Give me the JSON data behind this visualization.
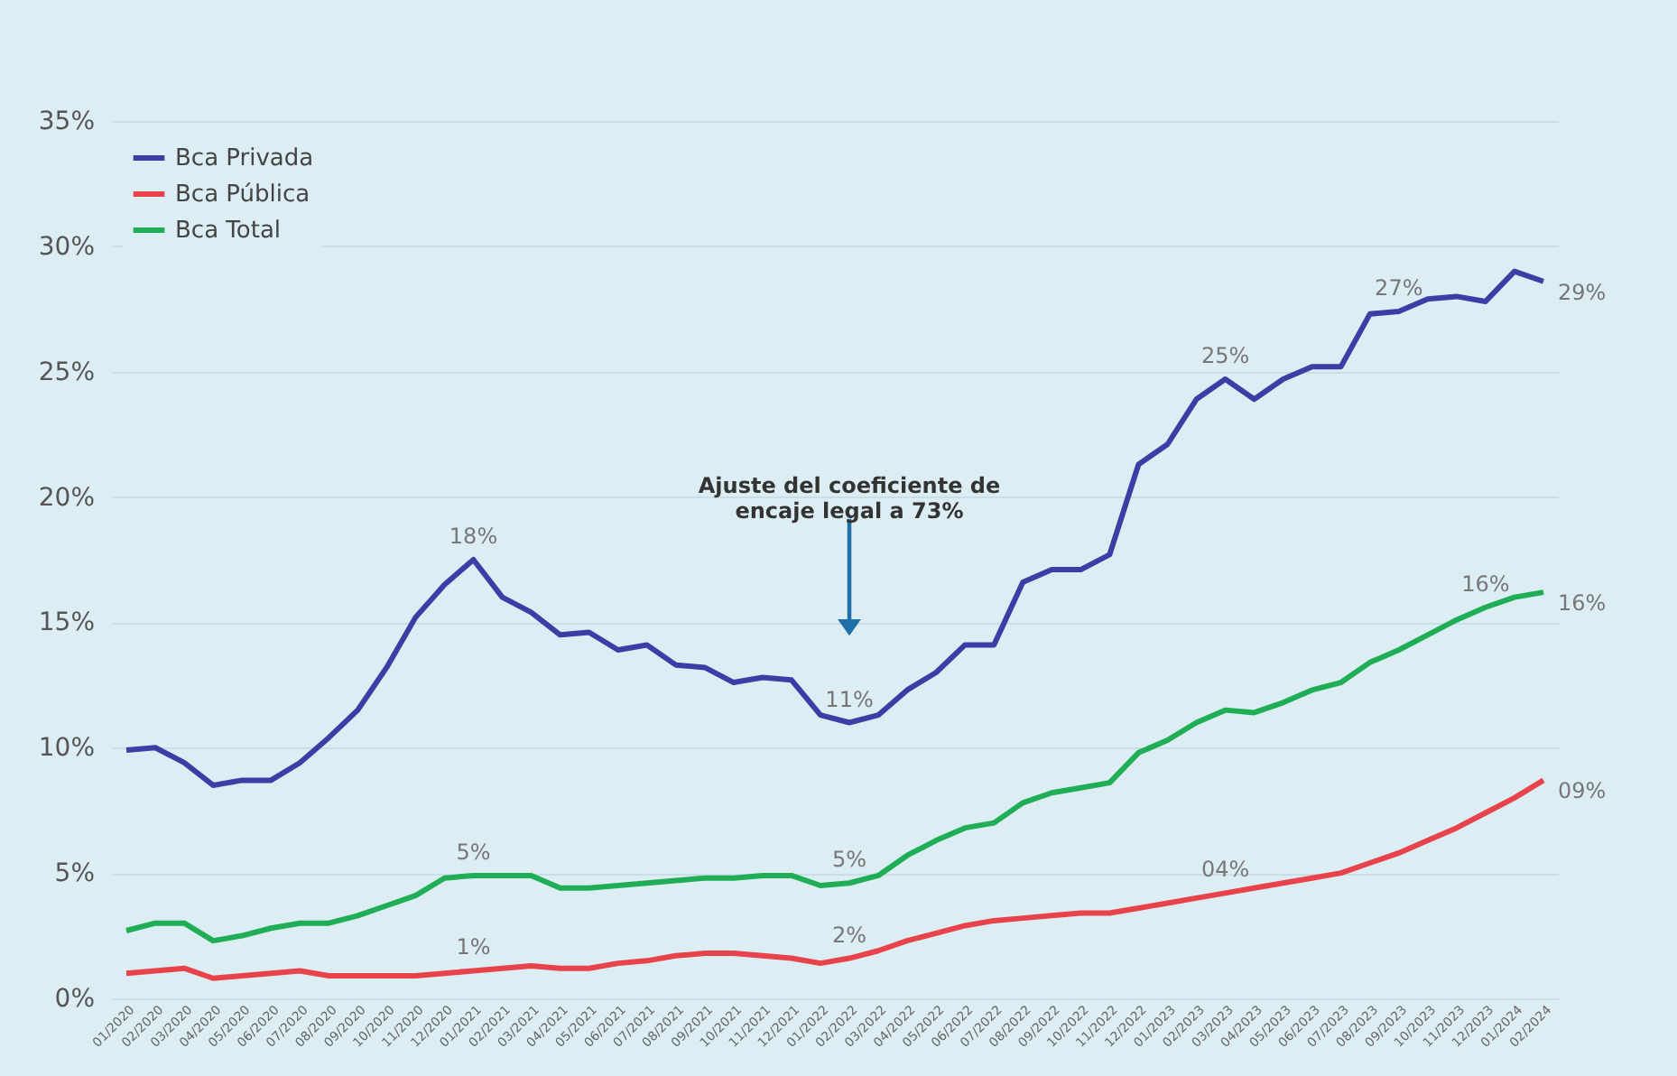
{
  "chart_data": {
    "type": "line",
    "categories": [
      "01/2020",
      "02/2020",
      "03/2020",
      "04/2020",
      "05/2020",
      "06/2020",
      "07/2020",
      "08/2020",
      "09/2020",
      "10/2020",
      "11/2020",
      "12/2020",
      "01/2021",
      "02/2021",
      "03/2021",
      "04/2021",
      "05/2021",
      "06/2021",
      "07/2021",
      "08/2021",
      "09/2021",
      "10/2021",
      "11/2021",
      "12/2021",
      "01/2022",
      "02/2022",
      "03/2022",
      "04/2022",
      "05/2022",
      "06/2022",
      "07/2022",
      "08/2022",
      "09/2022",
      "10/2022",
      "11/2022",
      "12/2022",
      "01/2023",
      "02/2023",
      "03/2023",
      "04/2023",
      "05/2023",
      "06/2023",
      "07/2023",
      "08/2023",
      "09/2023",
      "10/2023",
      "11/2023",
      "12/2023",
      "01/2024",
      "02/2024"
    ],
    "series": [
      {
        "name": "Bca Privada",
        "color": "#3a3fa6",
        "values": [
          9.9,
          10.0,
          9.4,
          8.5,
          8.7,
          8.7,
          9.4,
          10.4,
          11.5,
          13.2,
          15.2,
          16.5,
          17.5,
          16.0,
          15.4,
          14.5,
          14.6,
          13.9,
          14.1,
          13.3,
          13.2,
          12.6,
          12.8,
          12.7,
          11.3,
          11.0,
          11.3,
          12.3,
          13.0,
          14.1,
          14.1,
          16.6,
          17.1,
          17.1,
          17.7,
          21.3,
          22.1,
          23.9,
          24.7,
          23.9,
          24.7,
          25.2,
          25.2,
          27.3,
          27.4,
          27.9,
          28.0,
          27.8,
          29.0,
          28.6
        ],
        "value_labels": [
          null,
          null,
          null,
          null,
          null,
          null,
          null,
          null,
          null,
          null,
          null,
          null,
          "18%",
          null,
          null,
          null,
          null,
          null,
          null,
          null,
          null,
          null,
          null,
          null,
          null,
          "11%",
          null,
          null,
          null,
          null,
          null,
          null,
          null,
          null,
          null,
          null,
          null,
          null,
          "25%",
          null,
          null,
          null,
          null,
          null,
          "27%",
          null,
          null,
          null,
          null,
          "29%"
        ]
      },
      {
        "name": "Bca Pública",
        "color": "#e8434a",
        "values": [
          1.0,
          1.1,
          1.2,
          0.8,
          0.9,
          1.0,
          1.1,
          0.9,
          0.9,
          0.9,
          0.9,
          1.0,
          1.1,
          1.2,
          1.3,
          1.2,
          1.2,
          1.4,
          1.5,
          1.7,
          1.8,
          1.8,
          1.7,
          1.6,
          1.4,
          1.6,
          1.9,
          2.3,
          2.6,
          2.9,
          3.1,
          3.2,
          3.3,
          3.4,
          3.4,
          3.6,
          3.8,
          4.0,
          4.2,
          4.4,
          4.6,
          4.8,
          5.0,
          5.4,
          5.8,
          6.3,
          6.8,
          7.4,
          8.0,
          8.7
        ],
        "value_labels": [
          null,
          null,
          null,
          null,
          null,
          null,
          null,
          null,
          null,
          null,
          null,
          null,
          "1%",
          null,
          null,
          null,
          null,
          null,
          null,
          null,
          null,
          null,
          null,
          null,
          null,
          "2%",
          null,
          null,
          null,
          null,
          null,
          null,
          null,
          null,
          null,
          null,
          null,
          null,
          "04%",
          null,
          null,
          null,
          null,
          null,
          null,
          null,
          null,
          null,
          null,
          "09%"
        ]
      },
      {
        "name": "Bca Total",
        "color": "#1fae55",
        "values": [
          2.7,
          3.0,
          3.0,
          2.3,
          2.5,
          2.8,
          3.0,
          3.0,
          3.3,
          3.7,
          4.1,
          4.8,
          4.9,
          4.9,
          4.9,
          4.4,
          4.4,
          4.5,
          4.6,
          4.7,
          4.8,
          4.8,
          4.9,
          4.9,
          4.5,
          4.6,
          4.9,
          5.7,
          6.3,
          6.8,
          7.0,
          7.8,
          8.2,
          8.4,
          8.6,
          9.8,
          10.3,
          11.0,
          11.5,
          11.4,
          11.8,
          12.3,
          12.6,
          13.4,
          13.9,
          14.5,
          15.1,
          15.6,
          16.0,
          16.2
        ],
        "value_labels": [
          null,
          null,
          null,
          null,
          null,
          null,
          null,
          null,
          null,
          null,
          null,
          null,
          "5%",
          null,
          null,
          null,
          null,
          null,
          null,
          null,
          null,
          null,
          null,
          null,
          null,
          "5%",
          null,
          null,
          null,
          null,
          null,
          null,
          null,
          null,
          null,
          null,
          null,
          null,
          null,
          null,
          null,
          null,
          null,
          null,
          null,
          null,
          null,
          "16%",
          null,
          "16%"
        ]
      }
    ],
    "ylim": [
      0,
      35
    ],
    "yticks": [
      {
        "value": 0,
        "label": "0%"
      },
      {
        "value": 5,
        "label": "5%"
      },
      {
        "value": 10,
        "label": "10%"
      },
      {
        "value": 15,
        "label": "15%"
      },
      {
        "value": 20,
        "label": "20%"
      },
      {
        "value": 25,
        "label": "25%"
      },
      {
        "value": 30,
        "label": "30%"
      },
      {
        "value": 35,
        "label": "35%"
      }
    ],
    "grid": "y",
    "legend": "top left",
    "annotations": [
      "Ajuste del coeficiente de\nencaje legal a 73%"
    ]
  }
}
